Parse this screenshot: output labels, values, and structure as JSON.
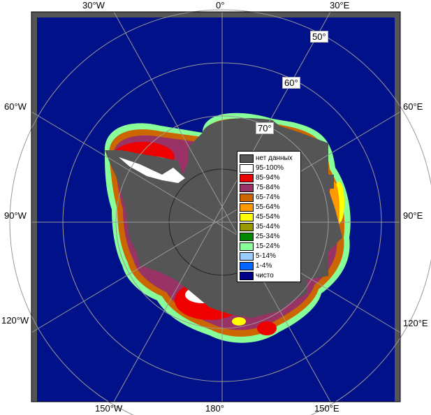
{
  "longitude_labels_top": [
    "30°W",
    "0°",
    "30°E"
  ],
  "longitude_labels_left": [
    "60°W",
    "90°W",
    "120°W"
  ],
  "longitude_labels_right": [
    "60°E",
    "90°E",
    "120°E"
  ],
  "longitude_labels_bottom": [
    "150°W",
    "180°",
    "150°E"
  ],
  "latitude_labels": [
    "50°",
    "60°",
    "70°"
  ],
  "legend": {
    "items": [
      {
        "label": "нет данных",
        "color": "#555555"
      },
      {
        "label": "95-100%",
        "color": "#ffffff"
      },
      {
        "label": "85-94%",
        "color": "#ee0000"
      },
      {
        "label": "75-84%",
        "color": "#993366"
      },
      {
        "label": "65-74%",
        "color": "#cc6600"
      },
      {
        "label": "55-64%",
        "color": "#ff9900"
      },
      {
        "label": "45-54%",
        "color": "#ffff00"
      },
      {
        "label": "35-44%",
        "color": "#999900"
      },
      {
        "label": "25-34%",
        "color": "#008800"
      },
      {
        "label": "15-24%",
        "color": "#88ff99"
      },
      {
        "label": "5-14%",
        "color": "#99ccff"
      },
      {
        "label": "1-4%",
        "color": "#0066ff"
      },
      {
        "label": "чисто",
        "color": "#000088"
      }
    ]
  },
  "colors": {
    "ocean": "#00118a",
    "no_data": "#555555",
    "frame": "#000000",
    "graticule": "#999999"
  }
}
